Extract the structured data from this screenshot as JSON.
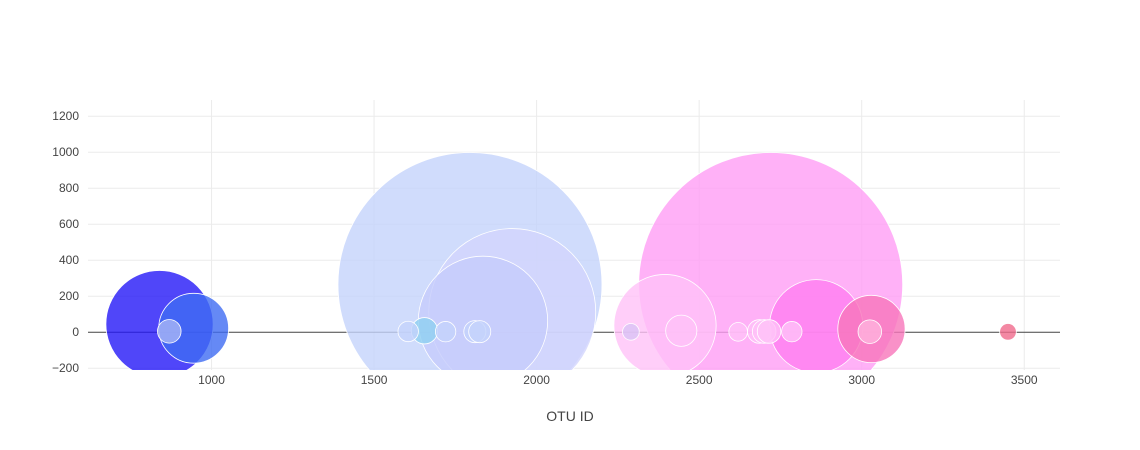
{
  "chart_data": {
    "type": "scatter",
    "title": "",
    "xlabel": "OTU ID",
    "ylabel": "",
    "xlim": [
      620,
      3610
    ],
    "ylim": [
      -210,
      1290
    ],
    "x_ticks": [
      1000,
      1500,
      2000,
      2500,
      3000,
      3500
    ],
    "y_ticks": [
      -200,
      0,
      200,
      400,
      600,
      800,
      1000,
      1200
    ],
    "x_tick_labels": [
      "1000",
      "1500",
      "2000",
      "2500",
      "3000",
      "3500"
    ],
    "y_tick_labels": [
      "−200",
      "0",
      "200",
      "400",
      "600",
      "800",
      "1000",
      "1200"
    ],
    "grid": true,
    "legend": false,
    "bubbles": [
      {
        "x": 1795,
        "y": 265,
        "size": 1000,
        "color": "#c4d3fb"
      },
      {
        "x": 2720,
        "y": 265,
        "size": 1000,
        "color": "#ff9ef5"
      },
      {
        "x": 1925,
        "y": 112,
        "size": 400,
        "color": "#d2d5fc"
      },
      {
        "x": 1835,
        "y": 63,
        "size": 240,
        "color": "#c6ccfb"
      },
      {
        "x": 840,
        "y": 45,
        "size": 165,
        "color": "#2418f8"
      },
      {
        "x": 945,
        "y": 22,
        "size": 70,
        "color": "#3e6cf2"
      },
      {
        "x": 2395,
        "y": 37,
        "size": 150,
        "color": "#ffc2f8"
      },
      {
        "x": 2860,
        "y": 33,
        "size": 125,
        "color": "#ff7ef0"
      },
      {
        "x": 3030,
        "y": 18,
        "size": 65,
        "color": "#f875ba"
      },
      {
        "x": 870,
        "y": 5,
        "size": 8,
        "color": "#a9b7f5"
      },
      {
        "x": 1655,
        "y": 8,
        "size": 10,
        "color": "#8fd0f0"
      },
      {
        "x": 1605,
        "y": 4,
        "size": 6,
        "color": "#c4d3fb"
      },
      {
        "x": 1720,
        "y": 3,
        "size": 6,
        "color": "#c4d3fb"
      },
      {
        "x": 1810,
        "y": 3,
        "size": 7,
        "color": "#c4d3fb"
      },
      {
        "x": 1825,
        "y": 3,
        "size": 7,
        "color": "#c4d3fb"
      },
      {
        "x": 2445,
        "y": 8,
        "size": 14,
        "color": "#ffc2f8"
      },
      {
        "x": 2290,
        "y": 2,
        "size": 4,
        "color": "#d9c3f5"
      },
      {
        "x": 2620,
        "y": 2,
        "size": 5,
        "color": "#ffc2f8"
      },
      {
        "x": 2685,
        "y": 4,
        "size": 8,
        "color": "#ffc2f8"
      },
      {
        "x": 2700,
        "y": 4,
        "size": 8,
        "color": "#ffc2f8"
      },
      {
        "x": 2715,
        "y": 4,
        "size": 8,
        "color": "#ffc2f8"
      },
      {
        "x": 2785,
        "y": 3,
        "size": 6,
        "color": "#ffc2f8"
      },
      {
        "x": 3025,
        "y": 3,
        "size": 8,
        "color": "#ffb3dd"
      },
      {
        "x": 3450,
        "y": 2,
        "size": 4,
        "color": "#f06a8c"
      }
    ]
  }
}
